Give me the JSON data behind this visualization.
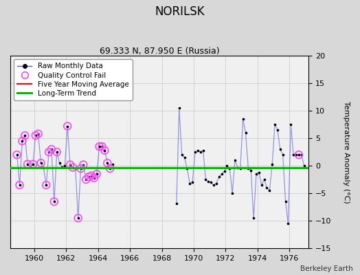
{
  "title": "NORILSK",
  "subtitle": "69.333 N, 87.950 E (Russia)",
  "ylabel": "Temperature Anomaly (°C)",
  "credit": "Berkeley Earth",
  "xlim": [
    1958.5,
    1977.2
  ],
  "ylim": [
    -15,
    20
  ],
  "yticks": [
    -15,
    -10,
    -5,
    0,
    5,
    10,
    15,
    20
  ],
  "xticks": [
    1960,
    1962,
    1964,
    1966,
    1968,
    1970,
    1972,
    1974,
    1976
  ],
  "bg_color": "#d8d8d8",
  "plot_bg_color": "#f0f0f0",
  "raw_data": [
    [
      1958.917,
      2.0
    ],
    [
      1959.083,
      -3.5
    ],
    [
      1959.25,
      4.5
    ],
    [
      1959.417,
      5.5
    ],
    [
      1959.583,
      0.3
    ],
    [
      1959.75,
      -0.2
    ],
    [
      1959.917,
      0.3
    ],
    [
      1960.083,
      5.5
    ],
    [
      1960.25,
      5.8
    ],
    [
      1960.417,
      0.5
    ],
    [
      1960.583,
      -0.3
    ],
    [
      1960.75,
      -3.5
    ],
    [
      1960.917,
      2.5
    ],
    [
      1961.083,
      3.0
    ],
    [
      1961.25,
      -6.5
    ],
    [
      1961.417,
      2.5
    ],
    [
      1961.583,
      0.5
    ],
    [
      1961.75,
      -0.2
    ],
    [
      1961.917,
      0.0
    ],
    [
      1962.083,
      7.2
    ],
    [
      1962.25,
      0.2
    ],
    [
      1962.417,
      -0.3
    ],
    [
      1962.583,
      -0.5
    ],
    [
      1962.75,
      -9.5
    ],
    [
      1962.917,
      -0.5
    ],
    [
      1963.083,
      0.2
    ],
    [
      1963.25,
      -2.5
    ],
    [
      1963.417,
      -2.0
    ],
    [
      1963.583,
      -1.8
    ],
    [
      1963.75,
      -2.2
    ],
    [
      1963.917,
      -1.5
    ],
    [
      1964.083,
      3.5
    ],
    [
      1964.25,
      3.5
    ],
    [
      1964.417,
      2.8
    ],
    [
      1964.583,
      0.5
    ],
    [
      1964.75,
      -0.5
    ],
    [
      1964.917,
      0.3
    ],
    [
      1968.917,
      -6.8
    ],
    [
      1969.083,
      10.5
    ],
    [
      1969.25,
      2.0
    ],
    [
      1969.417,
      1.5
    ],
    [
      1969.583,
      -0.5
    ],
    [
      1969.75,
      -3.2
    ],
    [
      1969.917,
      -3.0
    ],
    [
      1970.083,
      2.5
    ],
    [
      1970.25,
      2.8
    ],
    [
      1970.417,
      2.5
    ],
    [
      1970.583,
      2.8
    ],
    [
      1970.75,
      -2.5
    ],
    [
      1970.917,
      -2.8
    ],
    [
      1971.083,
      -3.0
    ],
    [
      1971.25,
      -3.5
    ],
    [
      1971.417,
      -3.2
    ],
    [
      1971.583,
      -2.0
    ],
    [
      1971.75,
      -1.5
    ],
    [
      1971.917,
      -1.0
    ],
    [
      1972.083,
      0.0
    ],
    [
      1972.25,
      -0.5
    ],
    [
      1972.417,
      -5.0
    ],
    [
      1972.583,
      1.0
    ],
    [
      1972.75,
      -0.3
    ],
    [
      1972.917,
      -0.5
    ],
    [
      1973.083,
      8.5
    ],
    [
      1973.25,
      6.0
    ],
    [
      1973.417,
      -0.5
    ],
    [
      1973.583,
      -0.8
    ],
    [
      1973.75,
      -9.5
    ],
    [
      1973.917,
      -1.5
    ],
    [
      1974.083,
      -1.2
    ],
    [
      1974.25,
      -3.5
    ],
    [
      1974.417,
      -2.5
    ],
    [
      1974.583,
      -4.0
    ],
    [
      1974.75,
      -4.5
    ],
    [
      1974.917,
      0.3
    ],
    [
      1975.083,
      7.5
    ],
    [
      1975.25,
      6.5
    ],
    [
      1975.417,
      3.0
    ],
    [
      1975.583,
      2.0
    ],
    [
      1975.75,
      -6.5
    ],
    [
      1975.917,
      -10.5
    ],
    [
      1976.083,
      7.5
    ],
    [
      1976.25,
      2.0
    ],
    [
      1976.417,
      2.0
    ],
    [
      1976.583,
      2.0
    ],
    [
      1976.75,
      2.0
    ],
    [
      1976.917,
      0.0
    ]
  ],
  "qc_fail_x": [
    1958.917,
    1959.083,
    1959.25,
    1959.417,
    1959.583,
    1959.917,
    1960.083,
    1960.25,
    1960.417,
    1960.75,
    1960.917,
    1961.083,
    1961.25,
    1961.417,
    1962.083,
    1962.25,
    1962.417,
    1962.75,
    1962.917,
    1963.083,
    1963.25,
    1963.417,
    1963.583,
    1963.75,
    1963.917,
    1964.083,
    1964.25,
    1964.417,
    1964.583,
    1964.75,
    1976.583
  ],
  "qc_fail_y": [
    2.0,
    -3.5,
    4.5,
    5.5,
    0.3,
    0.3,
    5.5,
    5.8,
    0.5,
    -3.5,
    2.5,
    3.0,
    -6.5,
    2.5,
    7.2,
    0.2,
    -0.3,
    -9.5,
    -0.5,
    0.2,
    -2.5,
    -2.0,
    -1.8,
    -2.2,
    -1.5,
    3.5,
    3.5,
    2.8,
    0.5,
    -0.5,
    2.0
  ],
  "long_term_trend_x": [
    1958.5,
    1977.2
  ],
  "long_term_trend_y": [
    -0.3,
    -0.3
  ],
  "line_color": "#5555dd",
  "line_alpha": 0.6,
  "dot_color": "#000000",
  "qc_color": "#ff44ff",
  "ma_color": "#ff0000",
  "trend_color": "#00bb00",
  "grid_color": "#cccccc",
  "title_fontsize": 12,
  "subtitle_fontsize": 9,
  "tick_fontsize": 8,
  "ylabel_fontsize": 8
}
